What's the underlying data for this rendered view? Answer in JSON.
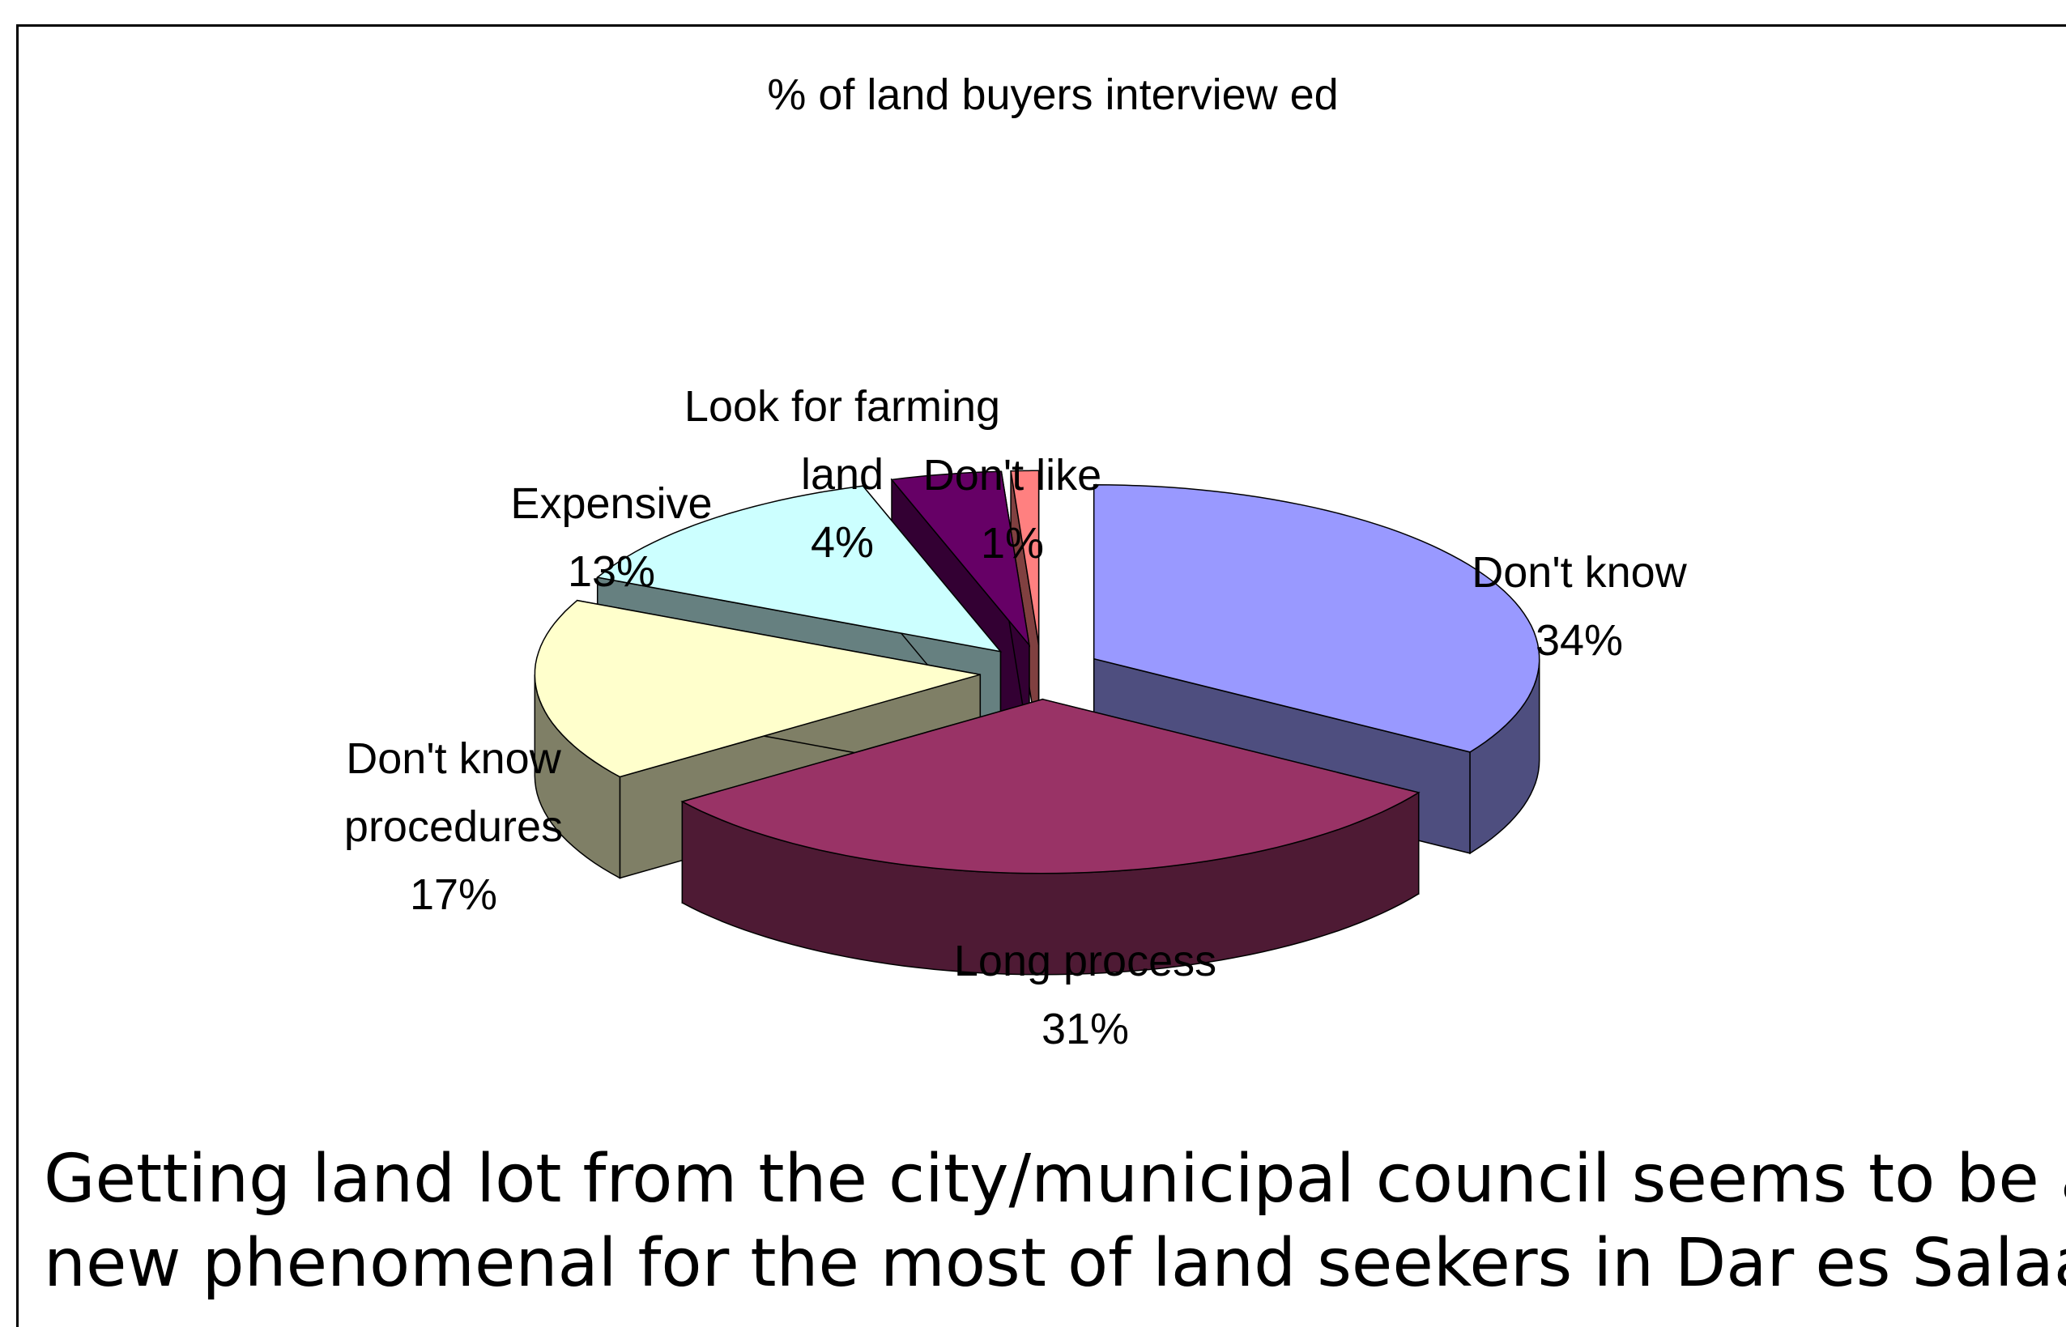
{
  "chart_data": {
    "type": "pie",
    "title": "% of land buyers interview ed",
    "slices": [
      {
        "lines": [
          "Don't know"
        ],
        "pct_label": "34%",
        "value": 34,
        "top_color": "#9999FF",
        "side_color": "#4E4E7F"
      },
      {
        "lines": [
          "Long process"
        ],
        "pct_label": "31%",
        "value": 31,
        "top_color": "#993366",
        "side_color": "#4E1A34"
      },
      {
        "lines": [
          "Don't know",
          "procedures"
        ],
        "pct_label": "17%",
        "value": 17,
        "top_color": "#FFFFCC",
        "side_color": "#7F7F66"
      },
      {
        "lines": [
          "Expensive"
        ],
        "pct_label": "13%",
        "value": 13,
        "top_color": "#CCFFFF",
        "side_color": "#668080"
      },
      {
        "lines": [
          "Look for farming",
          "land"
        ],
        "pct_label": "4%",
        "value": 4,
        "top_color": "#660066",
        "side_color": "#330033"
      },
      {
        "lines": [
          "Don't like"
        ],
        "pct_label": "1%",
        "value": 1,
        "top_color": "#FF8080",
        "side_color": "#804040"
      }
    ]
  },
  "caption": {
    "line1": "Getting land lot from the city/municipal council seems to be a",
    "line2": "new phenomenal for the most of land seekers in Dar es Salaam"
  }
}
